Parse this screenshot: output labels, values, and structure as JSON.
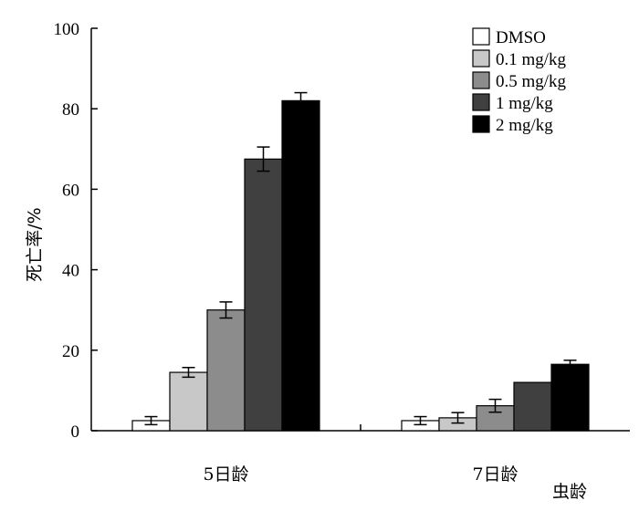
{
  "chart_data": {
    "type": "bar",
    "ylabel": "死亡率/%",
    "xlabel": "虫龄",
    "ylim": [
      0,
      100
    ],
    "yticks": [
      "0",
      "20",
      "40",
      "60",
      "80",
      "100"
    ],
    "categories": [
      "5日龄",
      "7日龄"
    ],
    "legend_position": "top-right",
    "grid": false,
    "series": [
      {
        "name": "DMSO",
        "color": "#ffffff",
        "values": [
          2.5,
          2.5
        ],
        "errors": [
          1.0,
          1.0
        ]
      },
      {
        "name": "0.1 mg/kg",
        "color": "#c8c8c8",
        "values": [
          14.5,
          3.2
        ],
        "errors": [
          1.2,
          1.3
        ]
      },
      {
        "name": "0.5 mg/kg",
        "color": "#8c8c8c",
        "values": [
          30.0,
          6.2
        ],
        "errors": [
          2.0,
          1.6
        ]
      },
      {
        "name": "1 mg/kg",
        "color": "#404040",
        "values": [
          67.5,
          12.0
        ],
        "errors": [
          3.0,
          0
        ]
      },
      {
        "name": "2 mg/kg",
        "color": "#000000",
        "values": [
          82.0,
          16.5
        ],
        "errors": [
          2.0,
          1.0
        ]
      }
    ]
  }
}
